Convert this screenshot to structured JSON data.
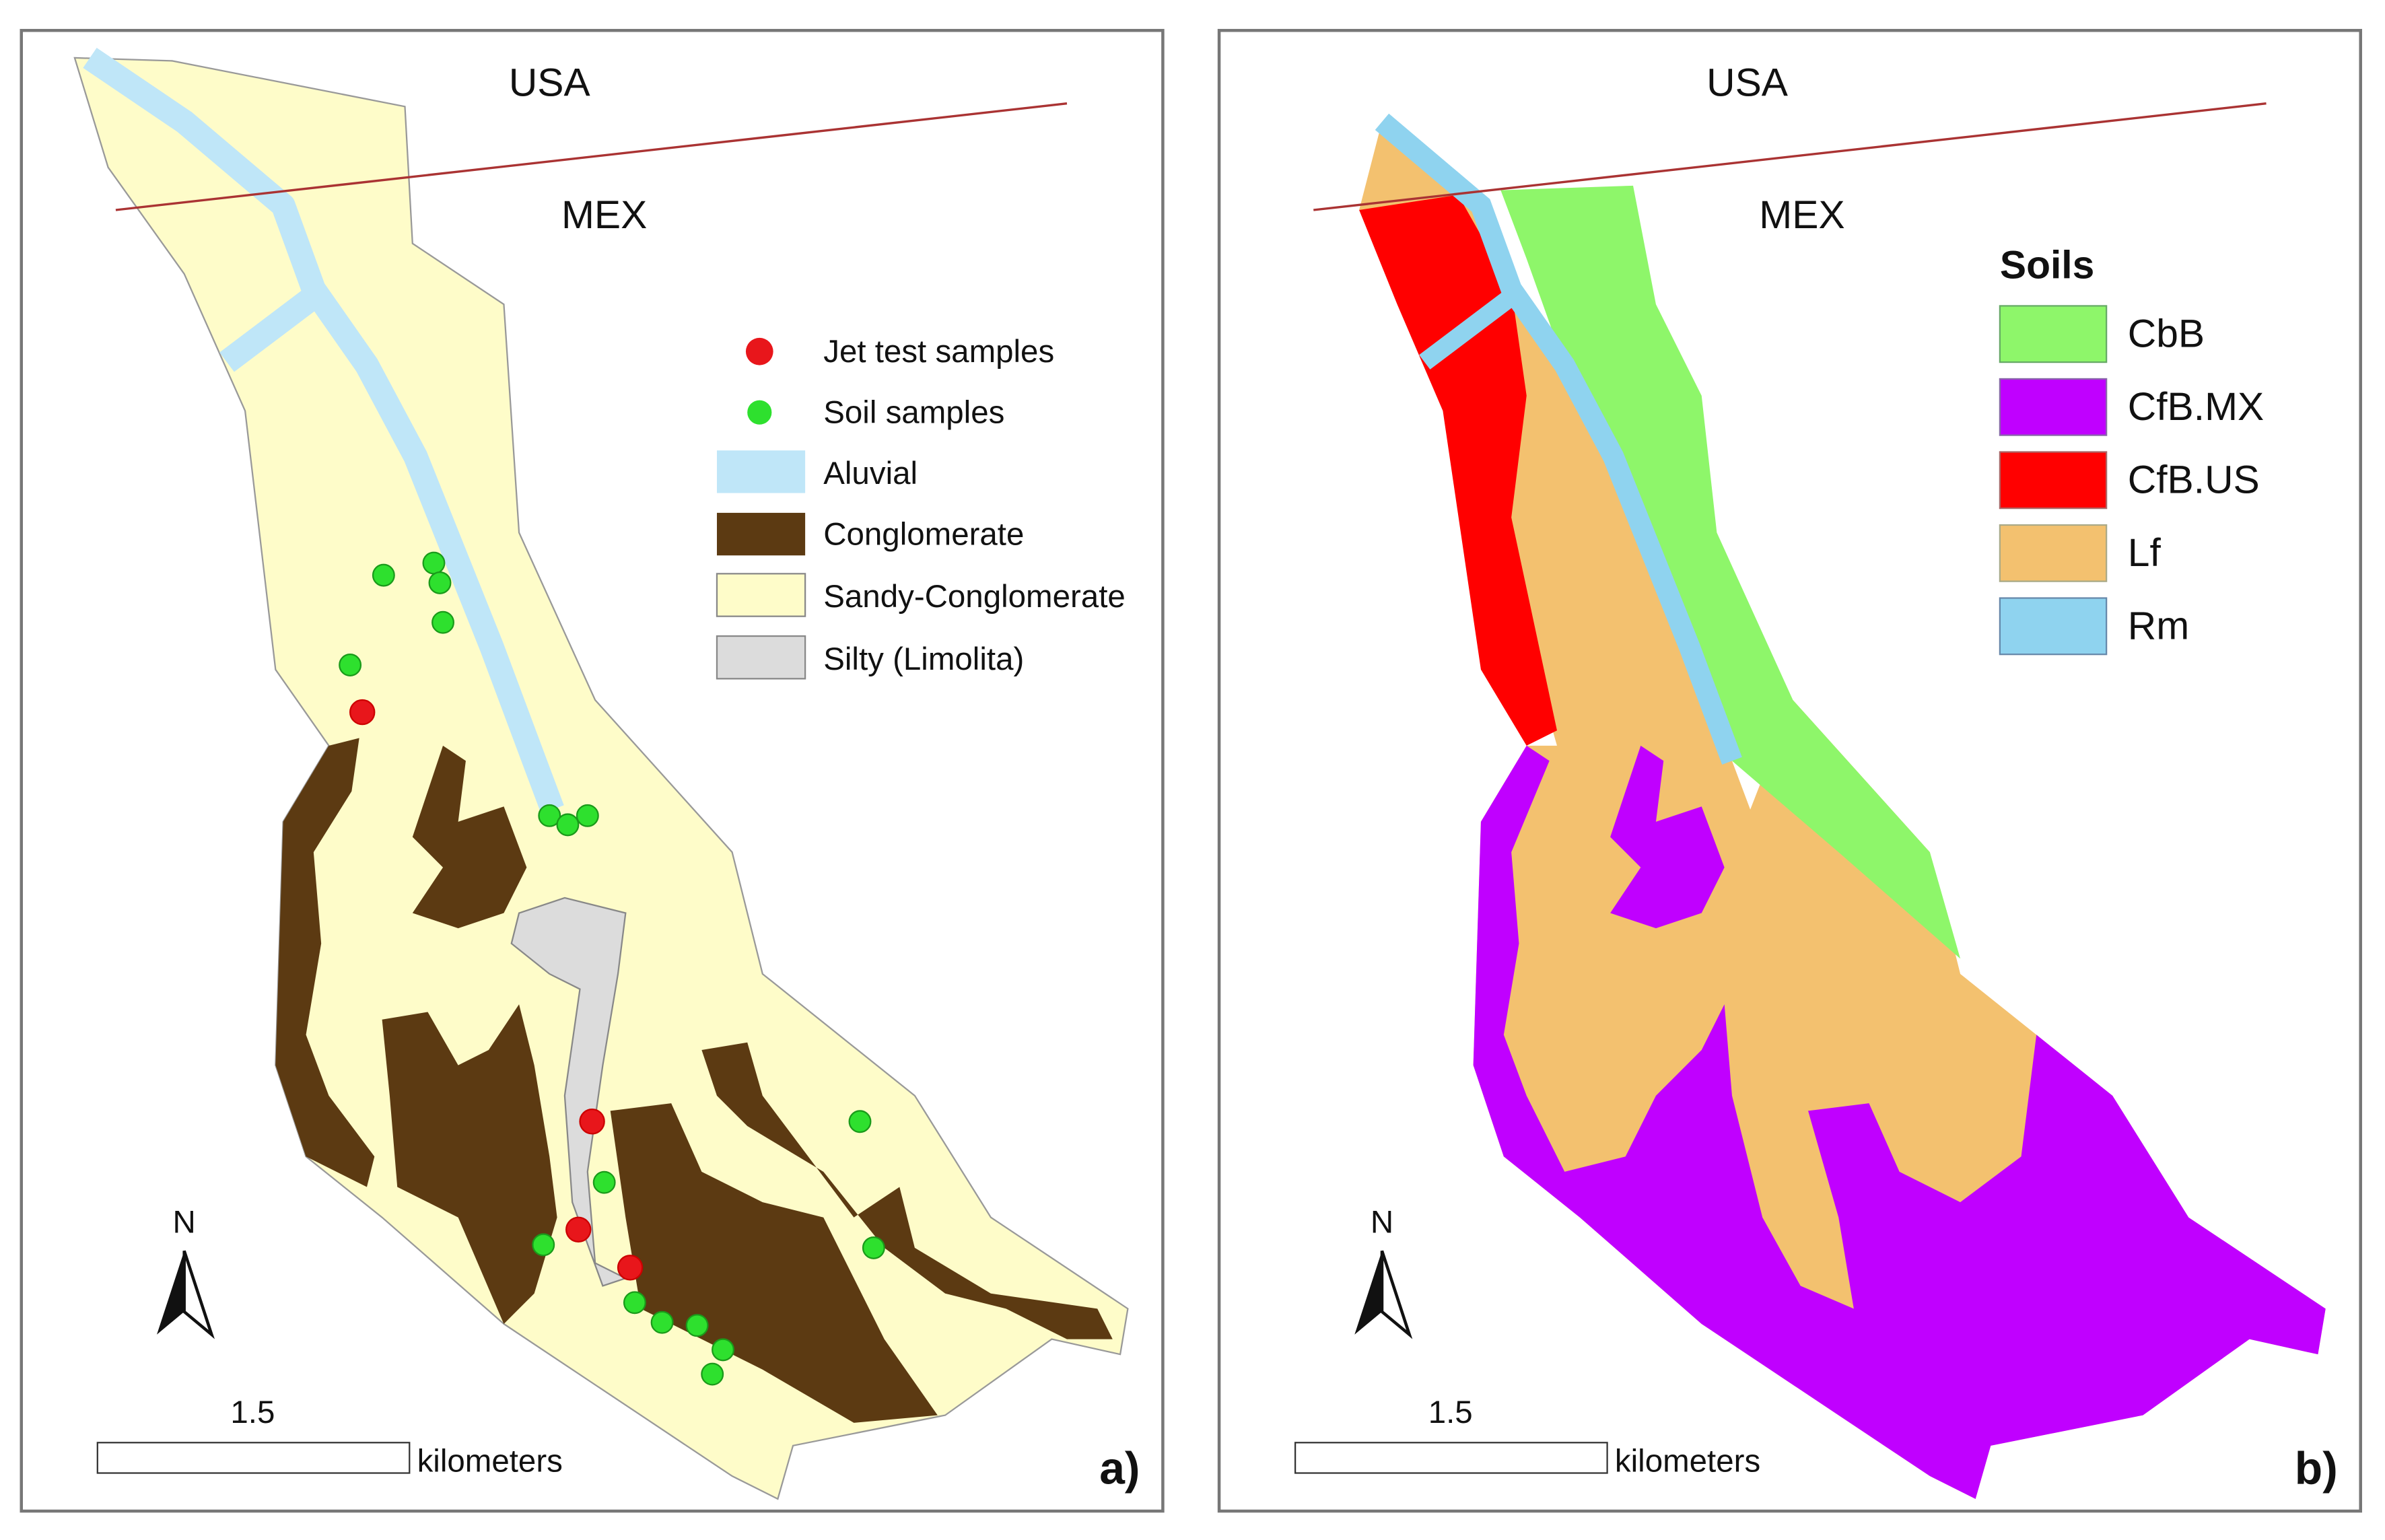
{
  "panels": [
    {
      "label": "a)",
      "north_country": "USA",
      "south_country": "MEX",
      "legend": {
        "items": [
          "Jet test samples",
          "Soil samples",
          "Aluvial",
          "Conglomerate",
          "Sandy-Conglomerate",
          "Silty (Limolita)"
        ]
      },
      "scale": {
        "value": 1.5,
        "unit": "kilometers"
      },
      "north": "N"
    },
    {
      "label": "b)",
      "north_country": "USA",
      "south_country": "MEX",
      "legend": {
        "title": "Soils",
        "items": [
          "CbB",
          "CfB.MX",
          "CfB.US",
          "Lf",
          "Rm"
        ]
      },
      "scale": {
        "value": 1.5,
        "unit": "kilometers"
      },
      "north": "N"
    }
  ]
}
